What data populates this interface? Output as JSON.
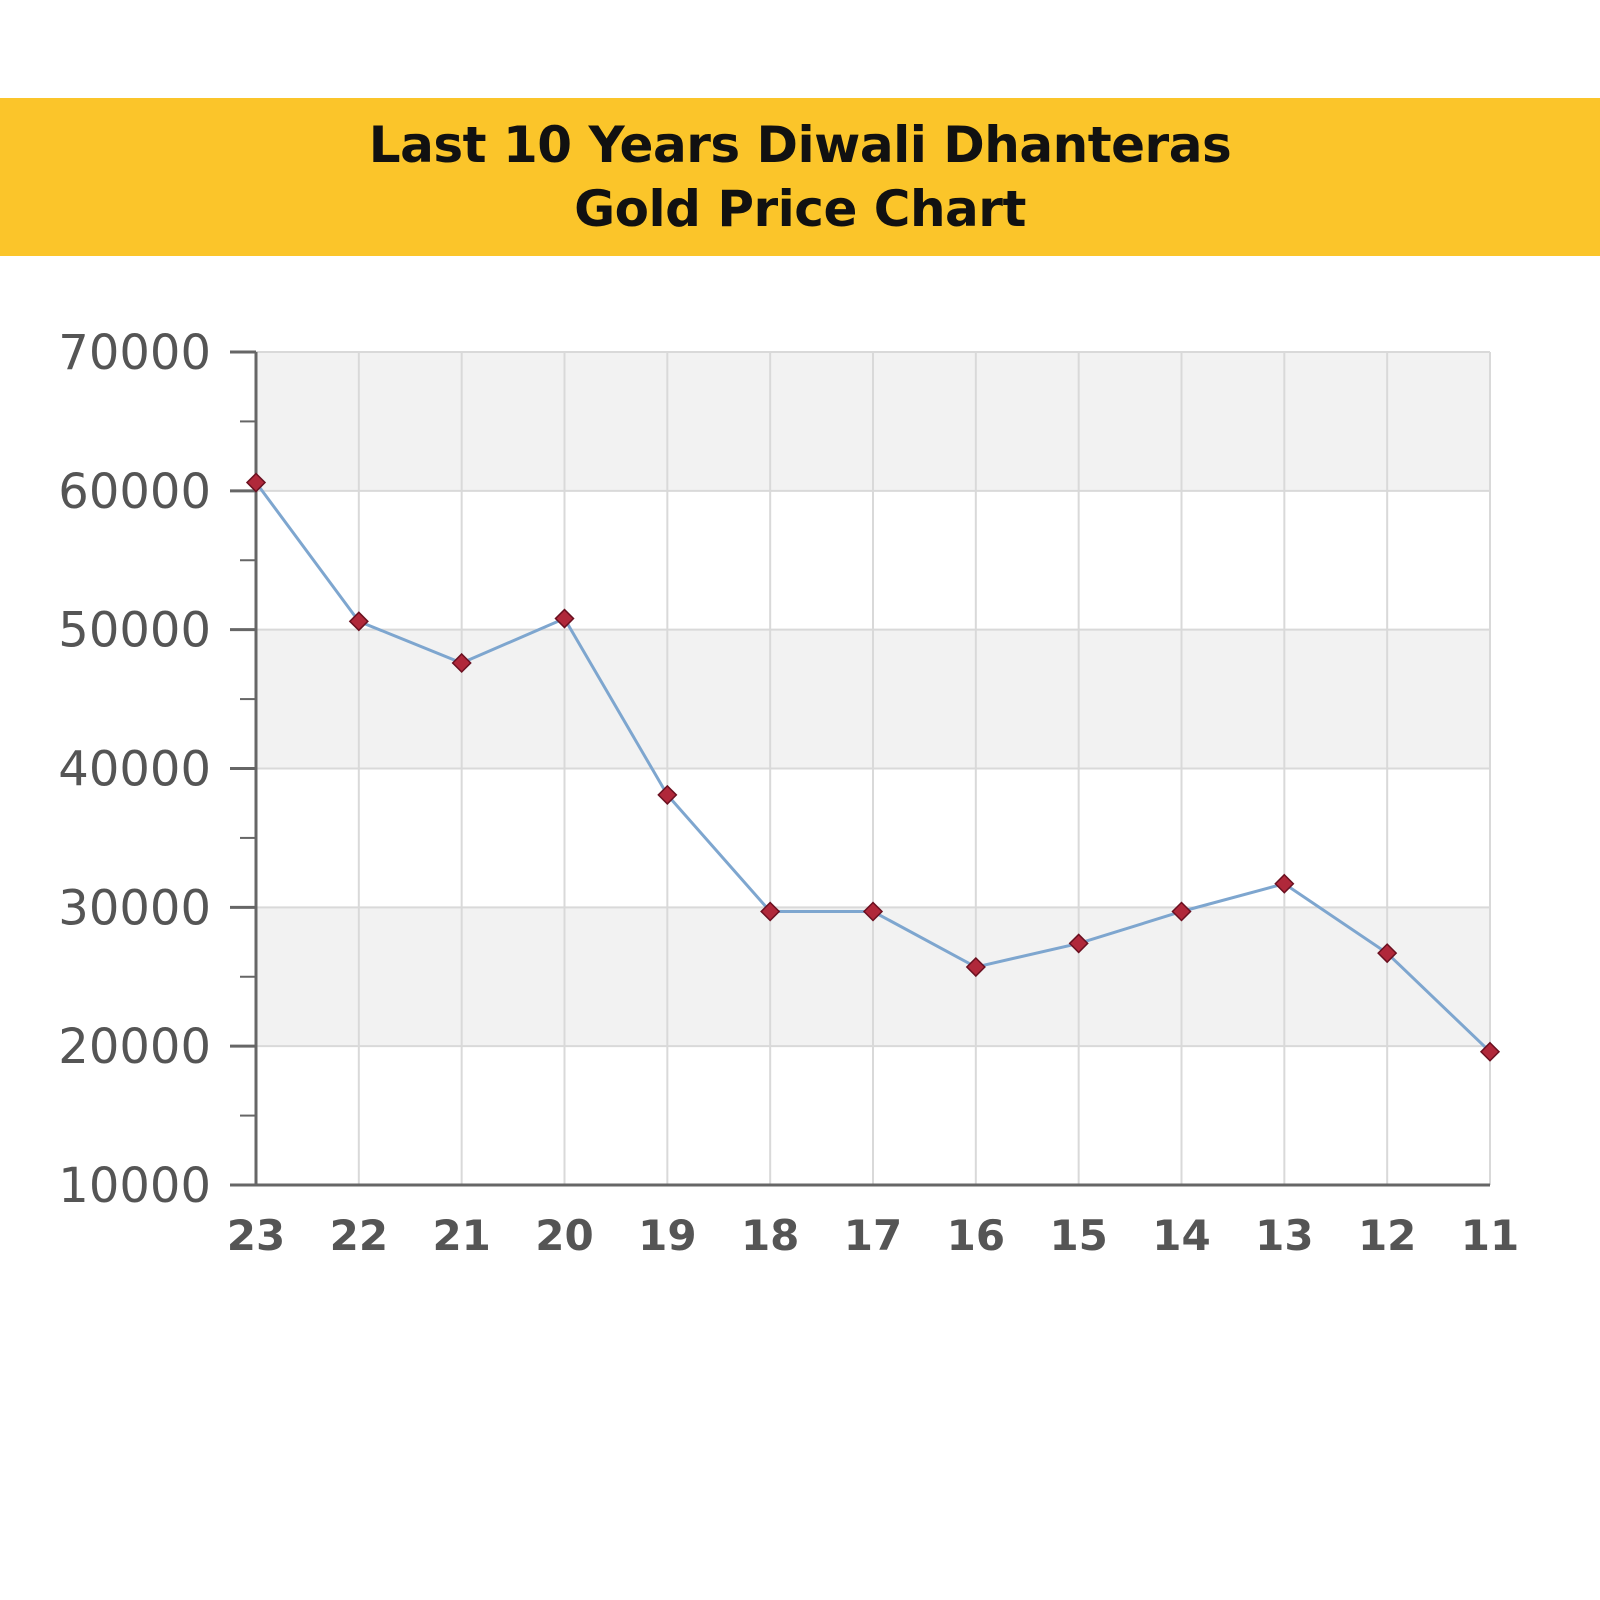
{
  "header": {
    "title_line1": "Last 10 Years Diwali Dhanteras",
    "title_line2": "Gold Price Chart"
  },
  "chart_data": {
    "type": "line",
    "title": "Last 10 Years Diwali Dhanteras Gold Price Chart",
    "xlabel": "",
    "ylabel": "",
    "categories": [
      "23",
      "22",
      "21",
      "20",
      "19",
      "18",
      "17",
      "16",
      "15",
      "14",
      "13",
      "12",
      "11"
    ],
    "series": [
      {
        "values": [
          60600,
          50600,
          47600,
          50800,
          38100,
          29700,
          29700,
          25700,
          27400,
          29700,
          31700,
          26700,
          19600
        ]
      }
    ],
    "ylim": [
      10000,
      70000
    ],
    "yticks": [
      10000,
      20000,
      30000,
      40000,
      50000,
      60000,
      70000
    ],
    "yticks_labels": [
      "10000",
      "20000",
      "30000",
      "40000",
      "50000",
      "60000",
      "70000"
    ],
    "grid": true,
    "legend": "none",
    "colors": {
      "line": "#7ea6cf",
      "marker": "#b0283a",
      "band": "#f2f2f2",
      "grid": "#d9d9d9",
      "axis": "#666666",
      "banner": "#fbc52a"
    }
  }
}
